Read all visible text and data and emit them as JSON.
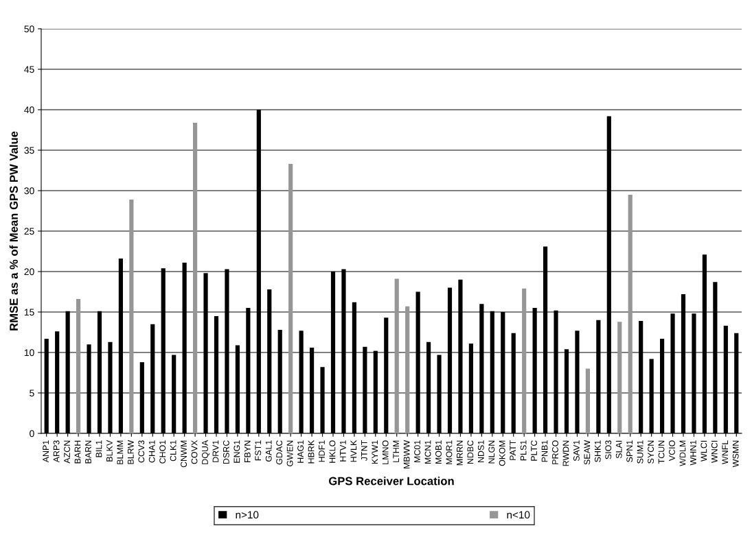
{
  "chart_data": {
    "type": "bar",
    "xlabel": "GPS Receiver Location",
    "ylabel": "RMSE as a % of Mean GPS PW Value",
    "categories": [
      "ANP1",
      "ARP3",
      "AZCN",
      "BARH",
      "BARN",
      "BIL1",
      "BLKV",
      "BLMM",
      "BLRW",
      "CCV3",
      "CHA1",
      "CHO1",
      "CLK1",
      "CNWM",
      "COVX",
      "DQUA",
      "DRV1",
      "DSRC",
      "ENG1",
      "FBYN",
      "FST1",
      "GAL1",
      "GDAC",
      "GWEN",
      "HAG1",
      "HBRK",
      "HDF1",
      "HKLO",
      "HTV1",
      "HVLK",
      "JTNT",
      "KYW1",
      "LMNO",
      "LTHM",
      "MBWW",
      "MC01",
      "MCN1",
      "MOB1",
      "MOR1",
      "MRRN",
      "NDBC",
      "NDS1",
      "NLGN",
      "OKOM",
      "PATT",
      "PLS1",
      "PLTC",
      "PNB1",
      "PRCO",
      "RWDN",
      "SAV1",
      "SEAW",
      "SHK1",
      "SIO3",
      "SLAI",
      "SPN1",
      "SUM1",
      "SYCN",
      "TCUN",
      "VCIO",
      "WDLM",
      "WHN1",
      "WLCI",
      "WNCI",
      "WNFL",
      "WSMN"
    ],
    "series": [
      {
        "name": "n>10",
        "color": "#000000",
        "values": [
          11.7,
          12.6,
          15.1,
          null,
          11.0,
          15.1,
          11.3,
          21.6,
          null,
          8.8,
          13.5,
          20.4,
          9.7,
          21.1,
          null,
          19.8,
          14.5,
          20.3,
          10.9,
          15.5,
          40,
          17.8,
          12.8,
          null,
          12.7,
          10.6,
          8.2,
          20.0,
          20.3,
          16.2,
          10.7,
          10.2,
          14.3,
          null,
          null,
          17.5,
          11.3,
          9.7,
          18.0,
          19.0,
          11.1,
          16.0,
          15.1,
          15.0,
          12.4,
          null,
          15.5,
          23.1,
          15.2,
          10.4,
          12.7,
          null,
          14.0,
          39.2,
          null,
          null,
          13.9,
          9.2,
          11.7,
          14.8,
          17.2,
          14.8,
          22.1,
          18.7,
          13.3,
          12.4
        ]
      },
      {
        "name": "n<10",
        "color": "#969696",
        "values": [
          null,
          null,
          null,
          16.6,
          null,
          null,
          null,
          null,
          28.9,
          null,
          null,
          null,
          null,
          null,
          38.4,
          null,
          null,
          null,
          null,
          null,
          null,
          null,
          null,
          33.3,
          null,
          null,
          null,
          null,
          null,
          null,
          null,
          null,
          null,
          19.1,
          15.7,
          null,
          null,
          null,
          null,
          null,
          null,
          null,
          null,
          null,
          null,
          17.9,
          null,
          null,
          null,
          null,
          null,
          8.0,
          null,
          null,
          13.8,
          29.5,
          null,
          null,
          null,
          null,
          null,
          null,
          null,
          null,
          null,
          null
        ]
      }
    ],
    "ylim": [
      0,
      50
    ],
    "yticks": [
      0,
      5,
      10,
      15,
      20,
      25,
      30,
      35,
      40,
      45,
      50
    ],
    "grid": "y",
    "legend": "bottom"
  }
}
